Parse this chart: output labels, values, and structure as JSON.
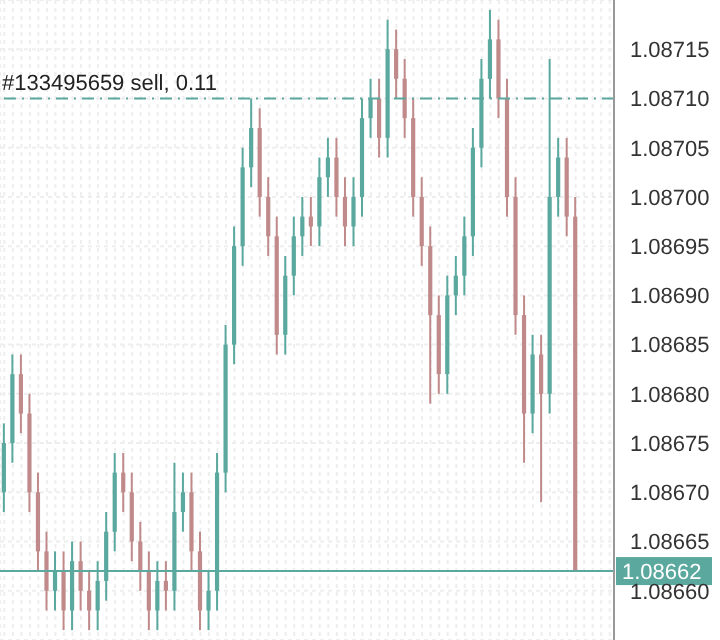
{
  "chart_data": {
    "type": "candlestick",
    "categories": [
      null,
      null,
      null,
      null,
      null,
      null,
      null,
      null,
      null,
      null,
      null,
      null,
      null,
      null,
      null,
      null,
      null,
      null,
      null,
      null,
      null,
      null,
      null,
      null,
      null,
      null,
      null,
      null,
      null,
      null,
      null,
      null,
      null,
      null,
      null,
      null,
      null,
      null,
      null,
      null,
      null,
      null,
      null,
      null,
      null,
      null,
      null,
      null,
      null,
      null,
      null,
      null,
      null,
      null,
      null,
      null,
      null,
      null,
      null,
      null,
      null,
      null,
      null,
      null,
      null,
      null,
      null,
      null,
      null,
      null,
      null,
      null
    ],
    "ohlc": [
      [
        1.0867,
        1.08677,
        1.08668,
        1.08675
      ],
      [
        1.08675,
        1.08684,
        1.08673,
        1.08682
      ],
      [
        1.08682,
        1.08684,
        1.08676,
        1.08678
      ],
      [
        1.08678,
        1.0868,
        1.08668,
        1.0867
      ],
      [
        1.0867,
        1.08672,
        1.08662,
        1.08664
      ],
      [
        1.08664,
        1.08666,
        1.08658,
        1.0866
      ],
      [
        1.0866,
        1.08664,
        1.08658,
        1.08662
      ],
      [
        1.08662,
        1.08664,
        1.08656,
        1.08658
      ],
      [
        1.08658,
        1.08665,
        1.08656,
        1.08663
      ],
      [
        1.08663,
        1.08665,
        1.08658,
        1.0866
      ],
      [
        1.0866,
        1.08662,
        1.08656,
        1.08658
      ],
      [
        1.08658,
        1.08663,
        1.08656,
        1.08661
      ],
      [
        1.08661,
        1.08668,
        1.08659,
        1.08666
      ],
      [
        1.08666,
        1.08674,
        1.08664,
        1.08672
      ],
      [
        1.08672,
        1.08674,
        1.08668,
        1.0867
      ],
      [
        1.0867,
        1.08672,
        1.08663,
        1.08665
      ],
      [
        1.08665,
        1.08667,
        1.0866,
        1.08662
      ],
      [
        1.08662,
        1.08664,
        1.08656,
        1.08658
      ],
      [
        1.08658,
        1.08663,
        1.08656,
        1.08661
      ],
      [
        1.08661,
        1.08663,
        1.08658,
        1.0866
      ],
      [
        1.0866,
        1.08673,
        1.08658,
        1.08668
      ],
      [
        1.08668,
        1.08672,
        1.08666,
        1.0867
      ],
      [
        1.0867,
        1.08672,
        1.08662,
        1.08664
      ],
      [
        1.08664,
        1.08666,
        1.08656,
        1.08658
      ],
      [
        1.08658,
        1.08662,
        1.08656,
        1.0866
      ],
      [
        1.0866,
        1.08674,
        1.08658,
        1.08672
      ],
      [
        1.08672,
        1.08687,
        1.0867,
        1.08685
      ],
      [
        1.08685,
        1.08697,
        1.08683,
        1.08695
      ],
      [
        1.08695,
        1.08705,
        1.08693,
        1.08703
      ],
      [
        1.08703,
        1.0871,
        1.08701,
        1.08707
      ],
      [
        1.08707,
        1.08709,
        1.08698,
        1.087
      ],
      [
        1.087,
        1.08702,
        1.08694,
        1.08696
      ],
      [
        1.08696,
        1.08698,
        1.08684,
        1.08686
      ],
      [
        1.08686,
        1.08694,
        1.08684,
        1.08692
      ],
      [
        1.08692,
        1.08698,
        1.0869,
        1.08696
      ],
      [
        1.08696,
        1.087,
        1.08694,
        1.08698
      ],
      [
        1.08698,
        1.087,
        1.08695,
        1.08697
      ],
      [
        1.08697,
        1.08704,
        1.08695,
        1.08702
      ],
      [
        1.08702,
        1.08706,
        1.087,
        1.08704
      ],
      [
        1.08704,
        1.08706,
        1.08698,
        1.087
      ],
      [
        1.087,
        1.08702,
        1.08695,
        1.08697
      ],
      [
        1.08697,
        1.08702,
        1.08695,
        1.087
      ],
      [
        1.087,
        1.0871,
        1.08698,
        1.08708
      ],
      [
        1.08708,
        1.08712,
        1.08706,
        1.0871
      ],
      [
        1.0871,
        1.08712,
        1.08704,
        1.08706
      ],
      [
        1.08706,
        1.08718,
        1.08704,
        1.08715
      ],
      [
        1.08715,
        1.08717,
        1.0871,
        1.08712
      ],
      [
        1.08712,
        1.08714,
        1.08706,
        1.08708
      ],
      [
        1.08708,
        1.0871,
        1.08698,
        1.087
      ],
      [
        1.087,
        1.08702,
        1.08693,
        1.08695
      ],
      [
        1.08695,
        1.08697,
        1.08679,
        1.08688
      ],
      [
        1.08688,
        1.0869,
        1.0868,
        1.08682
      ],
      [
        1.08682,
        1.08692,
        1.0868,
        1.0869
      ],
      [
        1.0869,
        1.08694,
        1.08688,
        1.08692
      ],
      [
        1.08692,
        1.08698,
        1.0869,
        1.08696
      ],
      [
        1.08696,
        1.08707,
        1.08694,
        1.08705
      ],
      [
        1.08705,
        1.08714,
        1.08703,
        1.08712
      ],
      [
        1.08712,
        1.08719,
        1.0871,
        1.08716
      ],
      [
        1.08716,
        1.08718,
        1.08708,
        1.0871
      ],
      [
        1.0871,
        1.08712,
        1.08698,
        1.087
      ],
      [
        1.087,
        1.08702,
        1.08686,
        1.08688
      ],
      [
        1.08688,
        1.0869,
        1.08673,
        1.08678
      ],
      [
        1.08678,
        1.08686,
        1.08676,
        1.08684
      ],
      [
        1.08684,
        1.08686,
        1.08669,
        1.0868
      ],
      [
        1.0868,
        1.08714,
        1.08678,
        1.087
      ],
      [
        1.087,
        1.08706,
        1.08698,
        1.08704
      ],
      [
        1.08704,
        1.08706,
        1.08696,
        1.08698
      ],
      [
        1.08698,
        1.087,
        1.08662,
        1.08662
      ],
      null,
      null,
      null,
      null
    ],
    "colors": [
      "#5aa89e",
      "#5aa89e",
      "#c08a8a",
      "#c08a8a",
      "#c08a8a",
      "#c08a8a",
      "#5aa89e",
      "#c08a8a",
      "#5aa89e",
      "#c08a8a",
      "#c08a8a",
      "#5aa89e",
      "#5aa89e",
      "#5aa89e",
      "#c08a8a",
      "#c08a8a",
      "#c08a8a",
      "#c08a8a",
      "#5aa89e",
      "#c08a8a",
      "#5aa89e",
      "#5aa89e",
      "#c08a8a",
      "#c08a8a",
      "#5aa89e",
      "#5aa89e",
      "#5aa89e",
      "#5aa89e",
      "#5aa89e",
      "#5aa89e",
      "#c08a8a",
      "#c08a8a",
      "#c08a8a",
      "#5aa89e",
      "#5aa89e",
      "#5aa89e",
      "#c08a8a",
      "#5aa89e",
      "#5aa89e",
      "#c08a8a",
      "#c08a8a",
      "#5aa89e",
      "#5aa89e",
      "#5aa89e",
      "#c08a8a",
      "#5aa89e",
      "#c08a8a",
      "#c08a8a",
      "#c08a8a",
      "#c08a8a",
      "#c08a8a",
      "#c08a8a",
      "#5aa89e",
      "#5aa89e",
      "#5aa89e",
      "#5aa89e",
      "#5aa89e",
      "#5aa89e",
      "#c08a8a",
      "#c08a8a",
      "#c08a8a",
      "#c08a8a",
      "#5aa89e",
      "#c08a8a",
      "#5aa89e",
      "#5aa89e",
      "#c08a8a",
      "#c08a8a",
      null,
      null,
      null,
      null
    ],
    "ylim": [
      1.08655,
      1.0872
    ],
    "yticks": [
      {
        "value": 1.0866,
        "label": "1.08660"
      },
      {
        "value": 1.08665,
        "label": "1.08665"
      },
      {
        "value": 1.0867,
        "label": "1.08670"
      },
      {
        "value": 1.08675,
        "label": "1.08675"
      },
      {
        "value": 1.0868,
        "label": "1.08680"
      },
      {
        "value": 1.08685,
        "label": "1.08685"
      },
      {
        "value": 1.0869,
        "label": "1.08690"
      },
      {
        "value": 1.08695,
        "label": "1.08695"
      },
      {
        "value": 1.087,
        "label": "1.08700"
      },
      {
        "value": 1.08705,
        "label": "1.08705"
      },
      {
        "value": 1.0871,
        "label": "1.08710"
      },
      {
        "value": 1.08715,
        "label": "1.08715"
      }
    ],
    "grid": true,
    "tick_labels": "y",
    "ref_lines": [
      {
        "axis": "y",
        "value": 1.0871,
        "label": "#133495659 sell, 0.11",
        "color": "#5aa89e",
        "line_style": "dashed"
      },
      {
        "axis": "y",
        "value": 1.08662,
        "label": "1.08662",
        "color": "#5aa89e",
        "line_style": "solid"
      }
    ]
  }
}
